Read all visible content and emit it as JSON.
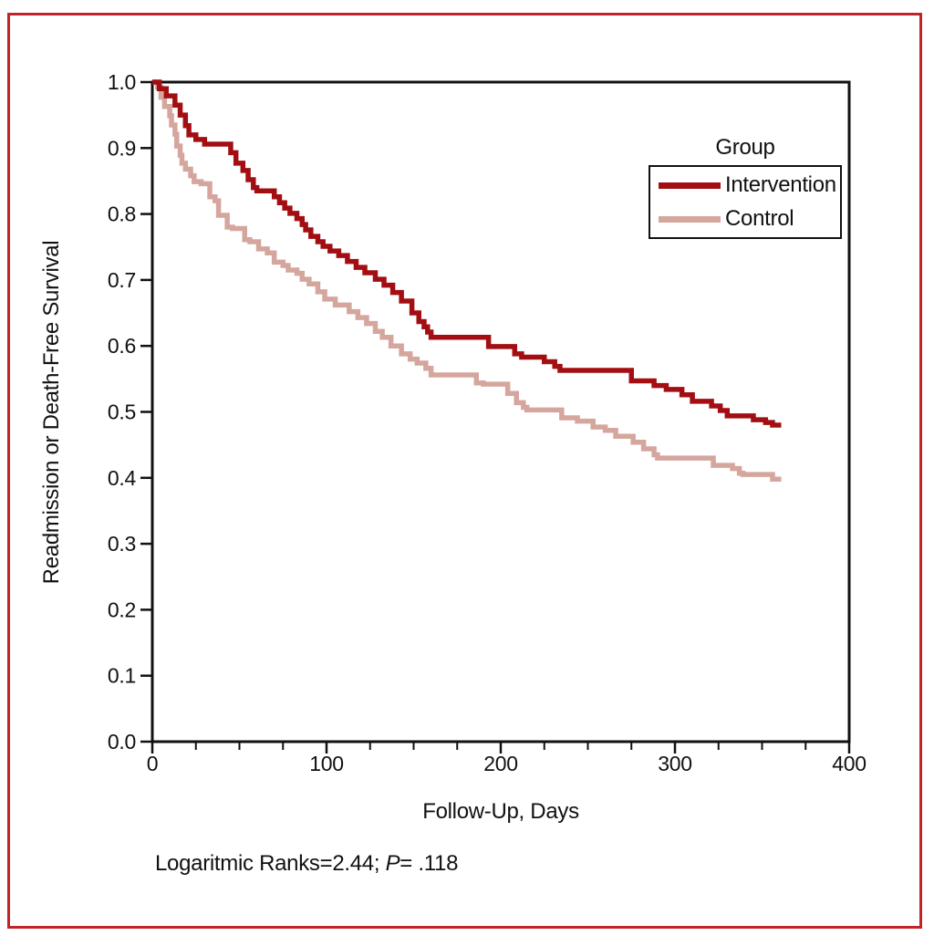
{
  "figure": {
    "background_color": "#ffffff",
    "border_color": "#c1232b",
    "axis_color": "#111111"
  },
  "chart_data": {
    "type": "line",
    "subtype": "kaplan-meier-step",
    "title": "",
    "xlabel": "Follow-Up, Days",
    "ylabel": "Readmission or Death-Free Survival",
    "xlim": [
      0,
      400
    ],
    "ylim": [
      0.0,
      1.0
    ],
    "grid": false,
    "x_ticks": {
      "major_values": [
        0,
        100,
        200,
        300,
        400
      ],
      "major_labels": [
        "0",
        "100",
        "200",
        "300",
        "400"
      ],
      "minor_step": 25
    },
    "y_ticks": {
      "values": [
        0.0,
        0.1,
        0.2,
        0.3,
        0.4,
        0.5,
        0.6,
        0.7,
        0.8,
        0.9,
        1.0
      ],
      "labels": [
        "0.0",
        "0.1",
        "0.2",
        "0.3",
        "0.4",
        "0.5",
        "0.6",
        "0.7",
        "0.8",
        "0.9",
        "1.0"
      ]
    },
    "legend": {
      "title": "Group",
      "position": "top-right",
      "entries": [
        {
          "label": "Intervention",
          "color": "#a30e13"
        },
        {
          "label": "Control",
          "color": "#d5a69d"
        }
      ]
    },
    "series": [
      {
        "name": "Intervention",
        "color": "#a30e13",
        "points": [
          [
            0,
            1.0
          ],
          [
            4,
            0.99
          ],
          [
            8,
            0.979
          ],
          [
            13,
            0.965
          ],
          [
            16,
            0.95
          ],
          [
            19,
            0.934
          ],
          [
            21,
            0.92
          ],
          [
            25,
            0.913
          ],
          [
            30,
            0.906
          ],
          [
            45,
            0.893
          ],
          [
            48,
            0.877
          ],
          [
            52,
            0.866
          ],
          [
            55,
            0.852
          ],
          [
            58,
            0.84
          ],
          [
            60,
            0.835
          ],
          [
            70,
            0.826
          ],
          [
            73,
            0.817
          ],
          [
            76,
            0.809
          ],
          [
            79,
            0.801
          ],
          [
            83,
            0.793
          ],
          [
            86,
            0.784
          ],
          [
            88,
            0.776
          ],
          [
            91,
            0.766
          ],
          [
            95,
            0.758
          ],
          [
            98,
            0.751
          ],
          [
            102,
            0.744
          ],
          [
            107,
            0.737
          ],
          [
            112,
            0.728
          ],
          [
            117,
            0.719
          ],
          [
            122,
            0.711
          ],
          [
            128,
            0.701
          ],
          [
            133,
            0.692
          ],
          [
            138,
            0.681
          ],
          [
            143,
            0.668
          ],
          [
            149,
            0.65
          ],
          [
            153,
            0.637
          ],
          [
            156,
            0.629
          ],
          [
            158,
            0.621
          ],
          [
            160,
            0.613
          ],
          [
            193,
            0.599
          ],
          [
            208,
            0.588
          ],
          [
            212,
            0.583
          ],
          [
            225,
            0.576
          ],
          [
            231,
            0.569
          ],
          [
            234,
            0.563
          ],
          [
            275,
            0.547
          ],
          [
            288,
            0.54
          ],
          [
            295,
            0.534
          ],
          [
            304,
            0.526
          ],
          [
            310,
            0.516
          ],
          [
            321,
            0.509
          ],
          [
            326,
            0.502
          ],
          [
            330,
            0.494
          ],
          [
            345,
            0.488
          ],
          [
            352,
            0.484
          ],
          [
            356,
            0.48
          ],
          [
            361,
            0.48
          ]
        ]
      },
      {
        "name": "Control",
        "color": "#d5a69d",
        "points": [
          [
            0,
            1.0
          ],
          [
            3,
            0.992
          ],
          [
            5,
            0.977
          ],
          [
            7,
            0.963
          ],
          [
            10,
            0.949
          ],
          [
            11,
            0.935
          ],
          [
            13,
            0.921
          ],
          [
            14,
            0.903
          ],
          [
            16,
            0.889
          ],
          [
            17,
            0.877
          ],
          [
            19,
            0.868
          ],
          [
            22,
            0.858
          ],
          [
            24,
            0.849
          ],
          [
            28,
            0.846
          ],
          [
            33,
            0.826
          ],
          [
            36,
            0.82
          ],
          [
            38,
            0.798
          ],
          [
            43,
            0.78
          ],
          [
            46,
            0.778
          ],
          [
            53,
            0.761
          ],
          [
            56,
            0.758
          ],
          [
            61,
            0.747
          ],
          [
            66,
            0.741
          ],
          [
            70,
            0.727
          ],
          [
            75,
            0.722
          ],
          [
            78,
            0.715
          ],
          [
            83,
            0.71
          ],
          [
            86,
            0.701
          ],
          [
            90,
            0.694
          ],
          [
            95,
            0.682
          ],
          [
            99,
            0.671
          ],
          [
            105,
            0.662
          ],
          [
            113,
            0.652
          ],
          [
            118,
            0.643
          ],
          [
            123,
            0.634
          ],
          [
            128,
            0.622
          ],
          [
            132,
            0.613
          ],
          [
            137,
            0.6
          ],
          [
            143,
            0.588
          ],
          [
            148,
            0.58
          ],
          [
            152,
            0.574
          ],
          [
            157,
            0.566
          ],
          [
            160,
            0.556
          ],
          [
            186,
            0.544
          ],
          [
            190,
            0.542
          ],
          [
            204,
            0.528
          ],
          [
            209,
            0.514
          ],
          [
            213,
            0.507
          ],
          [
            215,
            0.503
          ],
          [
            235,
            0.491
          ],
          [
            244,
            0.486
          ],
          [
            253,
            0.477
          ],
          [
            260,
            0.472
          ],
          [
            266,
            0.463
          ],
          [
            276,
            0.454
          ],
          [
            282,
            0.444
          ],
          [
            288,
            0.435
          ],
          [
            290,
            0.43
          ],
          [
            322,
            0.419
          ],
          [
            333,
            0.414
          ],
          [
            337,
            0.407
          ],
          [
            339,
            0.405
          ],
          [
            356,
            0.398
          ],
          [
            361,
            0.398
          ]
        ]
      }
    ],
    "footnote": "Logaritmic Ranks=2.44; P= .118"
  },
  "footnote": {
    "stat_text": "Logaritmic Ranks=2.44; ",
    "p_label": "P",
    "p_rest": "= .118"
  }
}
